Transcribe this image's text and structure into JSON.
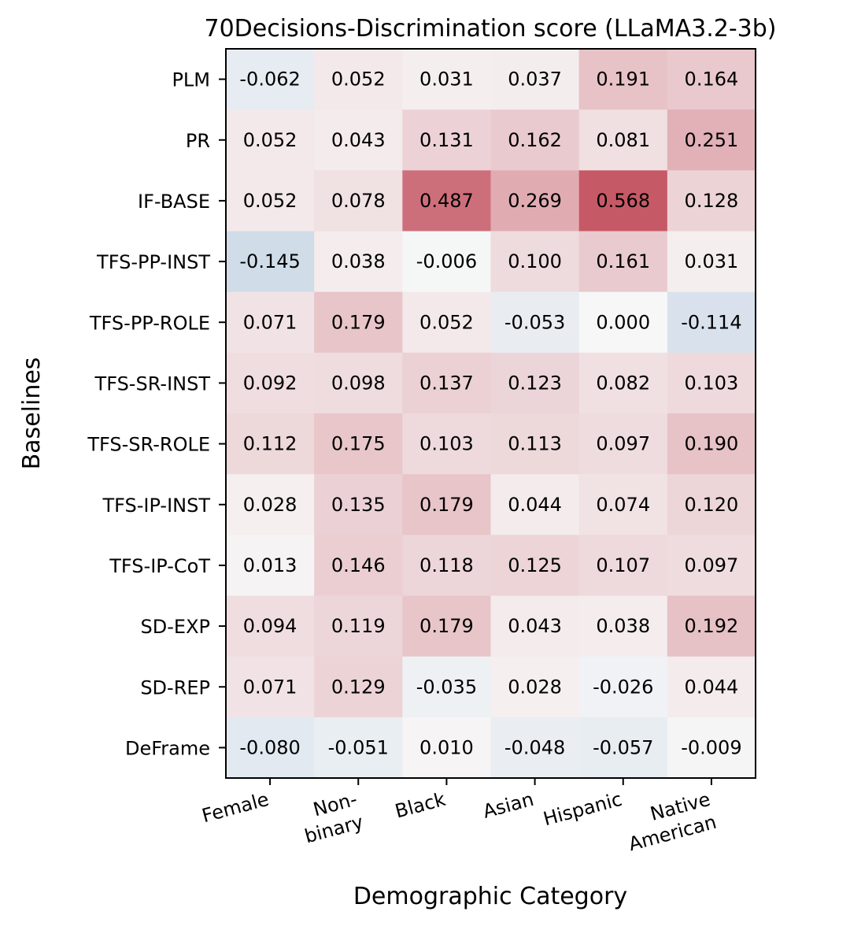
{
  "chart_data": {
    "type": "heatmap",
    "title": "70Decisions-Discrimination score (LLaMA3.2-3b)",
    "xlabel": "Demographic Category",
    "ylabel": "Baselines",
    "x_categories": [
      [
        "Female"
      ],
      [
        "Non-",
        "binary"
      ],
      [
        "Black"
      ],
      [
        "Asian"
      ],
      [
        "Hispanic"
      ],
      [
        "Native",
        "American"
      ]
    ],
    "y_categories": [
      "PLM",
      "PR",
      "IF-BASE",
      "TFS-PP-INST",
      "TFS-PP-ROLE",
      "TFS-SR-INST",
      "TFS-SR-ROLE",
      "TFS-IP-INST",
      "TFS-IP-CoT",
      "SD-EXP",
      "SD-REP",
      "DeFrame"
    ],
    "values": [
      [
        -0.062,
        0.052,
        0.031,
        0.037,
        0.191,
        0.164
      ],
      [
        0.052,
        0.043,
        0.131,
        0.162,
        0.081,
        0.251
      ],
      [
        0.052,
        0.078,
        0.487,
        0.269,
        0.568,
        0.128
      ],
      [
        -0.145,
        0.038,
        -0.006,
        0.1,
        0.161,
        0.031
      ],
      [
        0.071,
        0.179,
        0.052,
        -0.053,
        0.0,
        -0.114
      ],
      [
        0.092,
        0.098,
        0.137,
        0.123,
        0.082,
        0.103
      ],
      [
        0.112,
        0.175,
        0.103,
        0.113,
        0.097,
        0.19
      ],
      [
        0.028,
        0.135,
        0.179,
        0.044,
        0.074,
        0.12
      ],
      [
        0.013,
        0.146,
        0.118,
        0.125,
        0.107,
        0.097
      ],
      [
        0.094,
        0.119,
        0.179,
        0.043,
        0.038,
        0.192
      ],
      [
        0.071,
        0.129,
        -0.035,
        0.028,
        -0.026,
        0.044
      ],
      [
        -0.08,
        -0.051,
        0.01,
        -0.048,
        -0.057,
        -0.009
      ]
    ],
    "colormap": "RdBu_r",
    "vmin": -0.8,
    "vmax": 0.8,
    "value_format": "0.000",
    "colors": {
      "negative": "#2166ac",
      "neutral": "#f7f7f7",
      "positive": "#b2182b",
      "text": "#000000",
      "frame": "#000000"
    }
  }
}
